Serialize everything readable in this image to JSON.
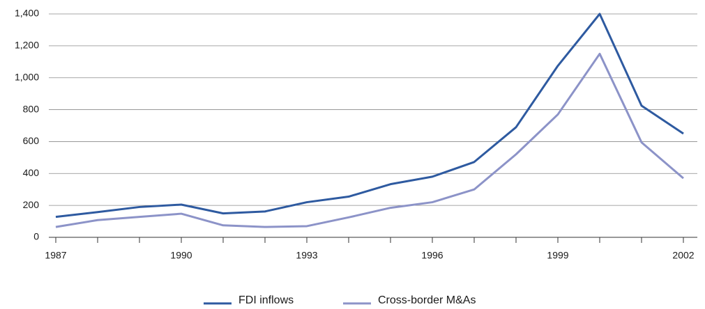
{
  "chart_data": {
    "type": "line",
    "x": [
      1987,
      1988,
      1989,
      1990,
      1991,
      1992,
      1993,
      1994,
      1995,
      1996,
      1997,
      1998,
      1999,
      2000,
      2001,
      2002
    ],
    "xlim": [
      1987,
      2002
    ],
    "xticks": [
      1987,
      1990,
      1993,
      1996,
      1999,
      2002
    ],
    "ylim": [
      0,
      1400
    ],
    "yticks": [
      0,
      {
        "value": 200,
        "label": "200"
      },
      400,
      600,
      800,
      {
        "value": 1000,
        "label": "1,000"
      },
      {
        "value": 1200,
        "label": "1,200"
      },
      {
        "value": 1400,
        "label": "1,400"
      }
    ],
    "grid": true,
    "legend": "bottom",
    "series": [
      {
        "name": "FDI inflows",
        "color": "#2e5aa0",
        "values": [
          128,
          158,
          190,
          205,
          150,
          162,
          220,
          255,
          333,
          380,
          472,
          690,
          1075,
          1400,
          825,
          650
        ]
      },
      {
        "name": "Cross-border M&As",
        "color": "#8c93c8",
        "values": [
          65,
          108,
          128,
          148,
          75,
          65,
          70,
          125,
          185,
          220,
          300,
          520,
          770,
          1150,
          595,
          370
        ]
      }
    ]
  }
}
